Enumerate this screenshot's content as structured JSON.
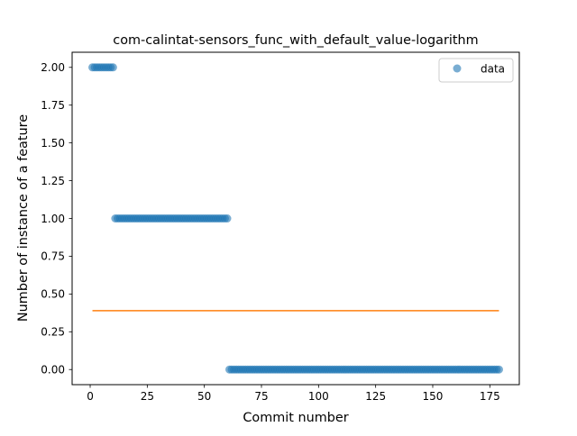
{
  "chart_data": {
    "type": "scatter",
    "title": "com-calintat-sensors_func_with_default_value-logarithm",
    "xlabel": "Commit number",
    "ylabel": "Number of instance of a feature",
    "xlim": [
      -7.9,
      187.9
    ],
    "ylim": [
      -0.1,
      2.1
    ],
    "xticks": [
      0,
      25,
      50,
      75,
      100,
      125,
      150,
      175
    ],
    "yticks": [
      0.0,
      0.25,
      0.5,
      0.75,
      1.0,
      1.25,
      1.5,
      1.75,
      2.0
    ],
    "xtick_labels": [
      "0",
      "25",
      "50",
      "75",
      "100",
      "125",
      "150",
      "175"
    ],
    "ytick_labels": [
      "0.00",
      "0.25",
      "0.50",
      "0.75",
      "1.00",
      "1.25",
      "1.50",
      "1.75",
      "2.00"
    ],
    "grid": false,
    "legend": {
      "placement": "top-right",
      "entries": [
        "data"
      ]
    },
    "series": [
      {
        "name": "data",
        "kind": "scatter",
        "color": "#1f77b4",
        "segments": [
          {
            "x_start": 1,
            "x_end": 10,
            "y": 2
          },
          {
            "x_start": 11,
            "x_end": 60,
            "y": 1
          },
          {
            "x_start": 61,
            "x_end": 179,
            "y": 0
          }
        ]
      },
      {
        "kind": "line",
        "color": "#ff7f0e",
        "x": [
          1,
          179
        ],
        "y": [
          0.39,
          0.39
        ]
      }
    ]
  }
}
